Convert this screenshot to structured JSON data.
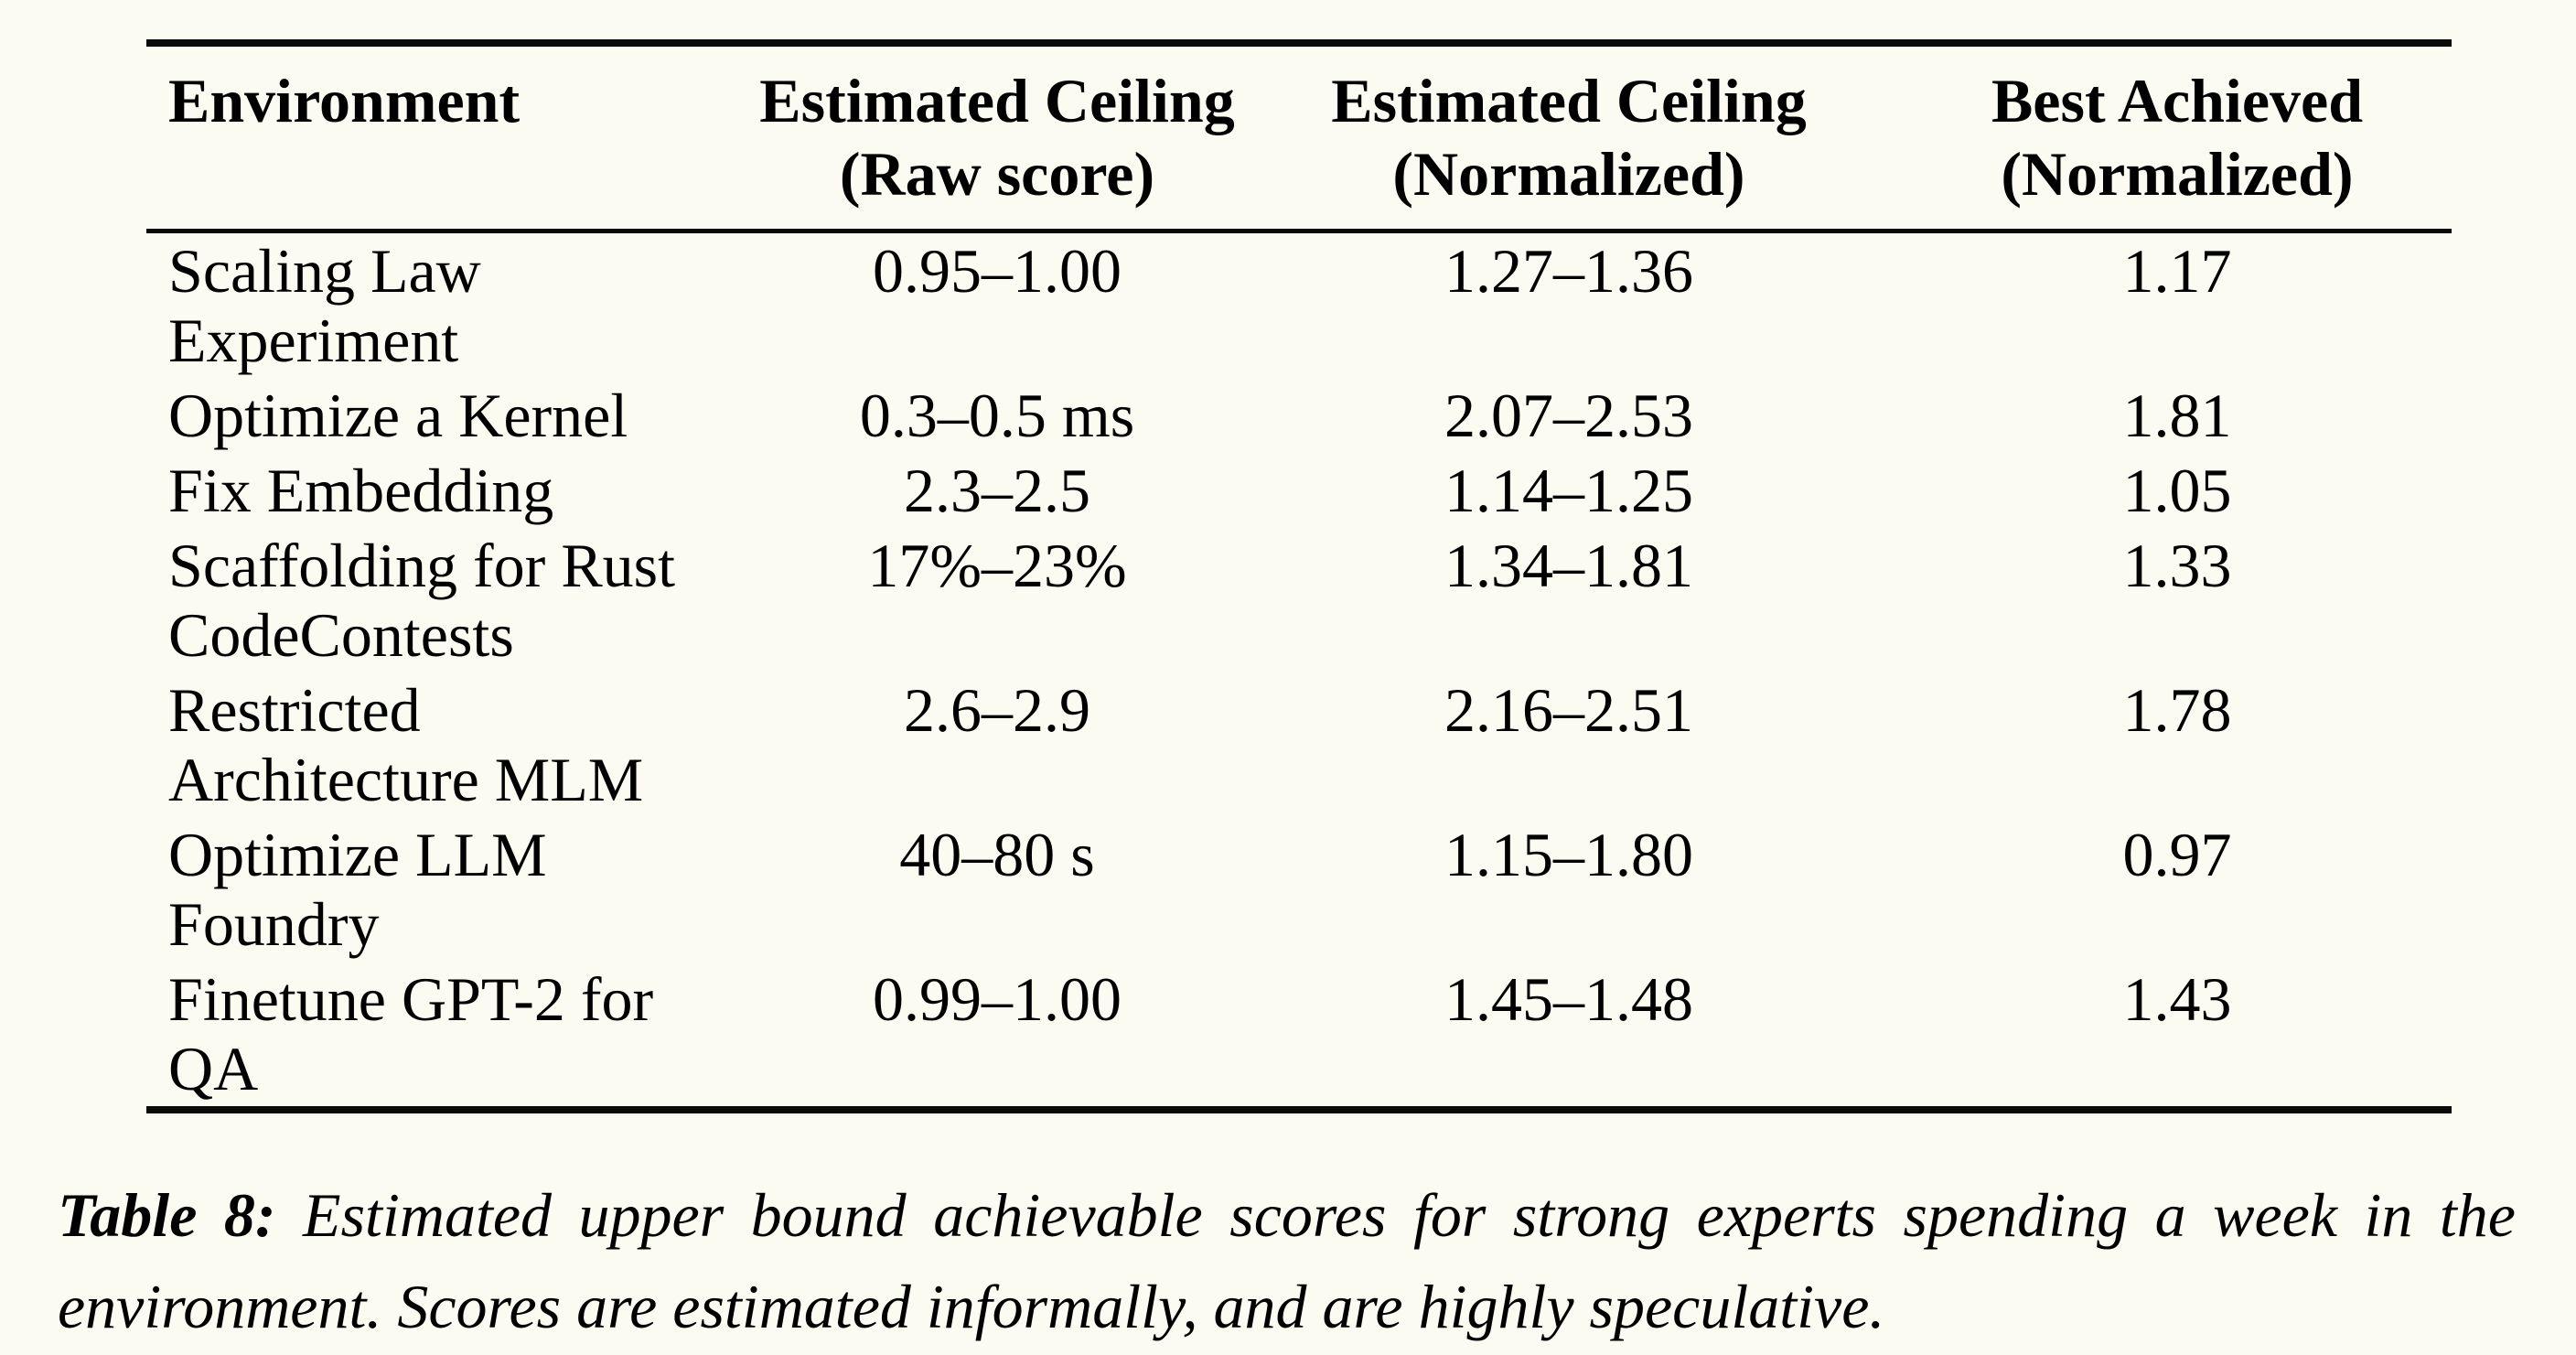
{
  "colors": {
    "background": "#fbfbf2",
    "text": "#000000",
    "rule": "#0a0a08"
  },
  "table": {
    "columns": [
      {
        "line1": "Environment",
        "line2": ""
      },
      {
        "line1": "Estimated Ceiling",
        "line2": "(Raw score)"
      },
      {
        "line1": "Estimated Ceiling",
        "line2": "(Normalized)"
      },
      {
        "line1": "Best Achieved",
        "line2": "(Normalized)"
      }
    ],
    "rows": [
      {
        "env1": "Scaling Law",
        "env2": "Experiment",
        "raw": "0.95–1.00",
        "ceiling_norm": "1.27–1.36",
        "best_norm": "1.17"
      },
      {
        "env1": "Optimize a Kernel",
        "env2": "",
        "raw": "0.3–0.5 ms",
        "ceiling_norm": "2.07–2.53",
        "best_norm": "1.81"
      },
      {
        "env1": "Fix Embedding",
        "env2": "",
        "raw": "2.3–2.5",
        "ceiling_norm": "1.14–1.25",
        "best_norm": "1.05"
      },
      {
        "env1": "Scaffolding for Rust",
        "env2": "CodeContests",
        "raw": "17%–23%",
        "ceiling_norm": "1.34–1.81",
        "best_norm": "1.33"
      },
      {
        "env1": "Restricted",
        "env2": "Architecture MLM",
        "raw": "2.6–2.9",
        "ceiling_norm": "2.16–2.51",
        "best_norm": "1.78"
      },
      {
        "env1": "Optimize LLM",
        "env2": "Foundry",
        "raw": "40–80 s",
        "ceiling_norm": "1.15–1.80",
        "best_norm": "0.97"
      },
      {
        "env1": "Finetune GPT-2 for",
        "env2": "QA",
        "raw": "0.99–1.00",
        "ceiling_norm": "1.45–1.48",
        "best_norm": "1.43"
      }
    ]
  },
  "caption": {
    "label": "Table 8:",
    "line1": "Estimated upper bound achievable scores for strong experts spending a week in the",
    "line2": "environment. Scores are estimated informally, and are highly speculative."
  }
}
